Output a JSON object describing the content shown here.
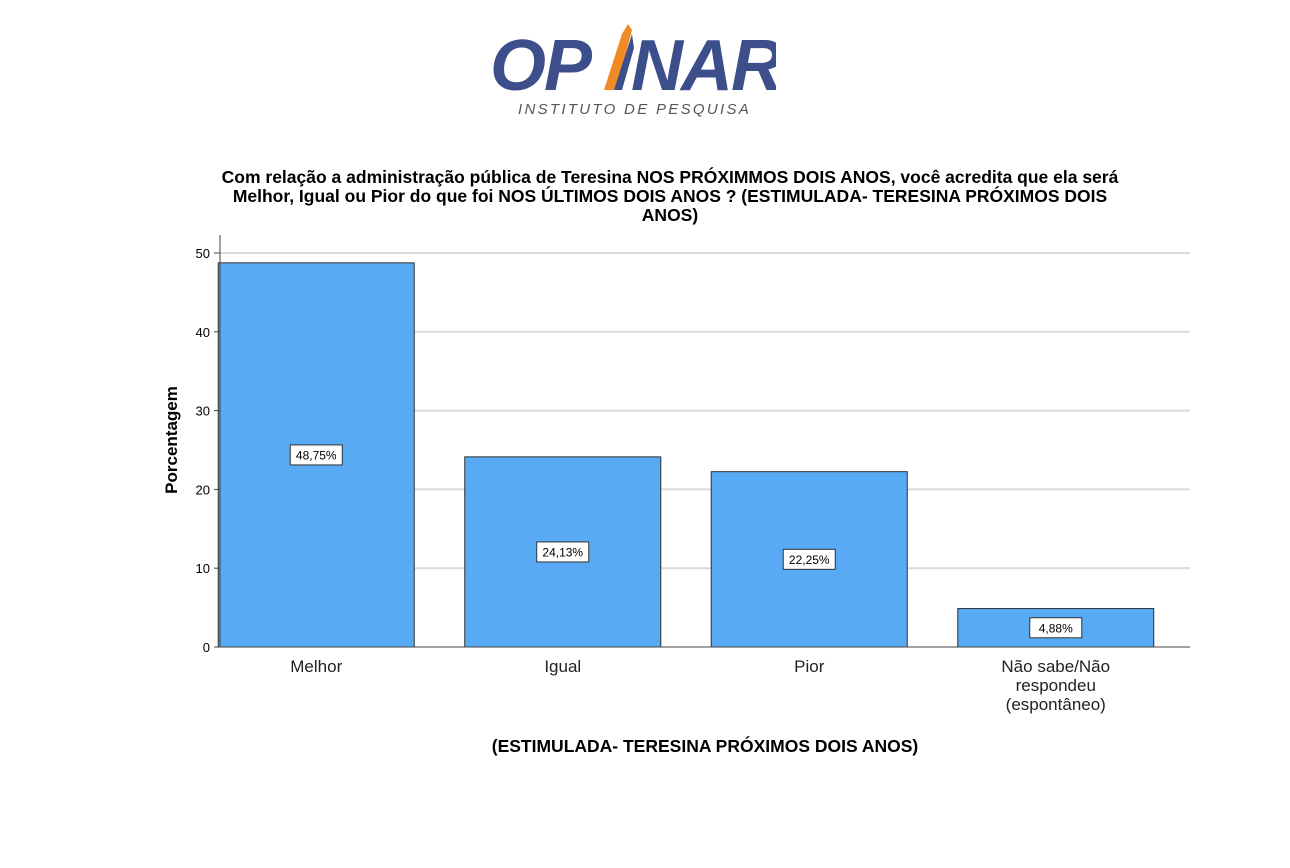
{
  "brand": {
    "name": "OPINAR",
    "tagline": "INSTITUTO DE PESQUISA",
    "colors": {
      "navy": "#3d4f8a",
      "orange": "#f08a24",
      "gray": "#555555"
    }
  },
  "chart_data": {
    "type": "bar",
    "title_lines": [
      "Com relação a administração pública de Teresina NOS PRÓXIMMOS DOIS ANOS, você acredita que ela será",
      "Melhor, Igual ou Pior do que foi NOS ÚLTIMOS DOIS ANOS ? (ESTIMULADA- TERESINA PRÓXIMOS DOIS",
      "ANOS)"
    ],
    "xlabel": "(ESTIMULADA- TERESINA PRÓXIMOS DOIS ANOS)",
    "ylabel": "Porcentagem",
    "categories": [
      [
        "Melhor"
      ],
      [
        "Igual"
      ],
      [
        "Pior"
      ],
      [
        "Não sabe/Não",
        "respondeu",
        "(espontâneo)"
      ]
    ],
    "values": [
      48.75,
      24.13,
      22.25,
      4.88
    ],
    "data_labels": [
      "48,75%",
      "24,13%",
      "22,25%",
      "4,88%"
    ],
    "ylim": [
      0,
      50
    ],
    "yticks": [
      0,
      10,
      20,
      30,
      40,
      50
    ],
    "grid": true,
    "bar_color": "#58aaf5",
    "bar_stroke": "#2f2f2f",
    "grid_color": "#d9d9d9"
  }
}
